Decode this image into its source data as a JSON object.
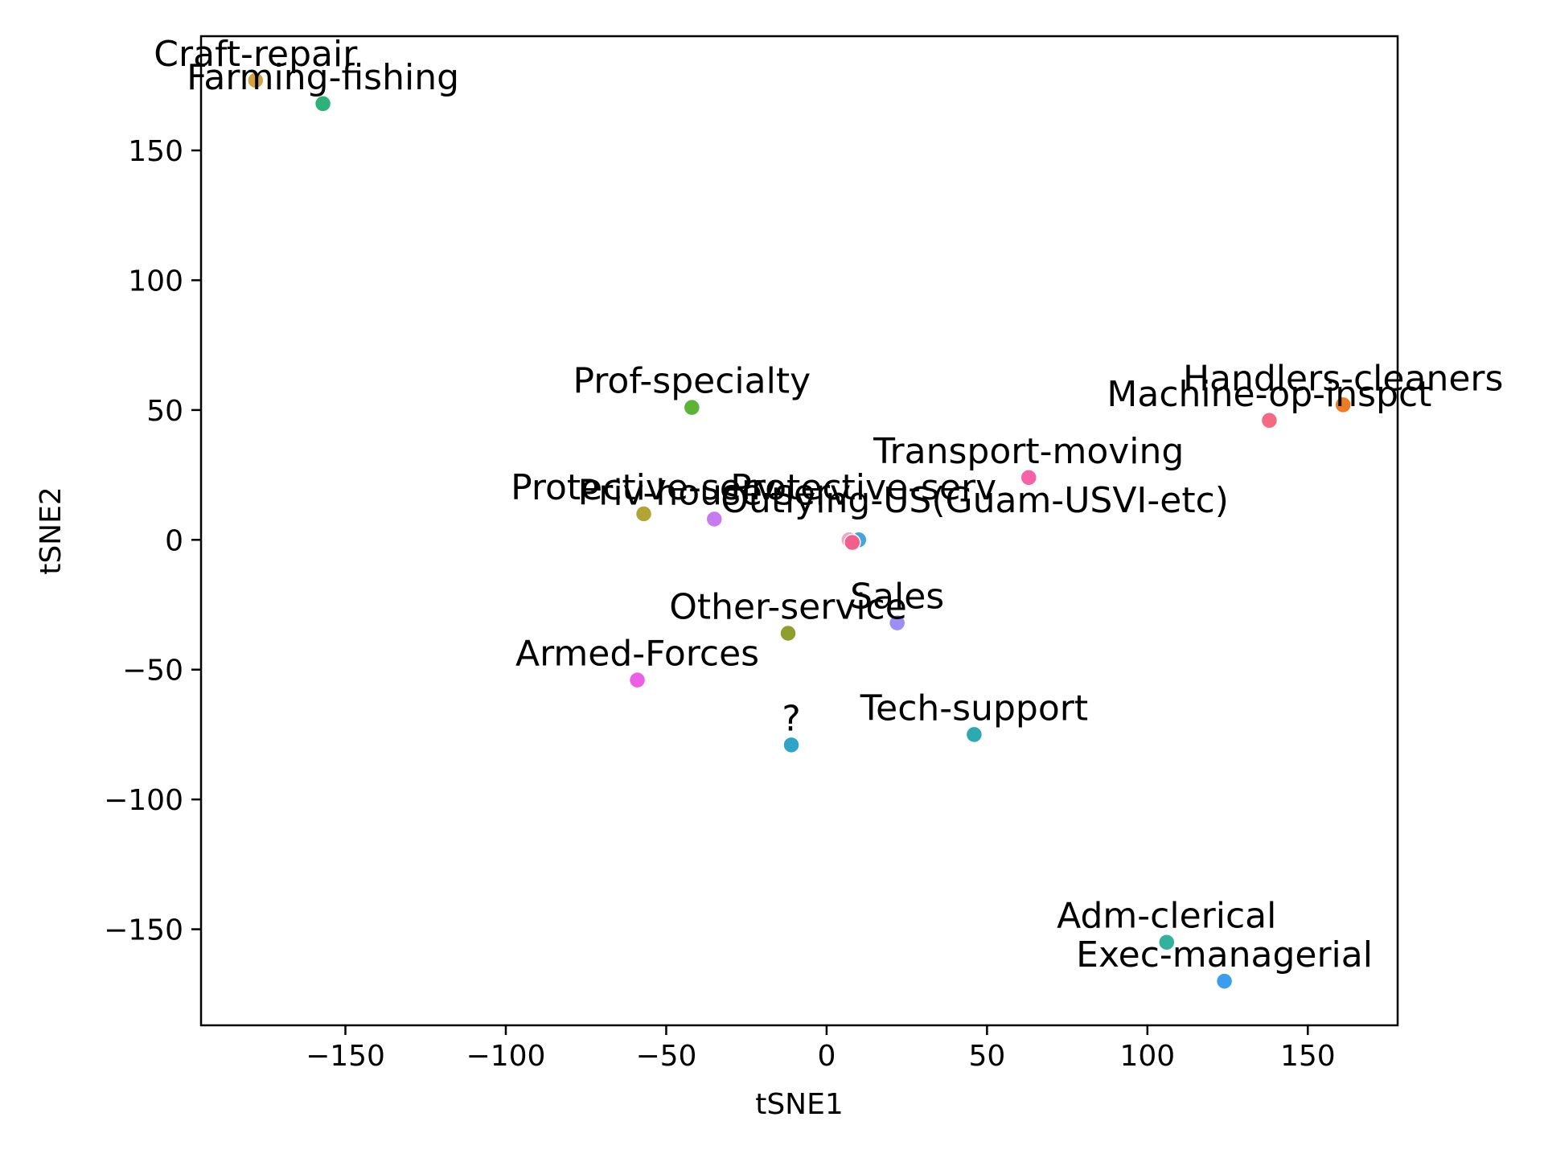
{
  "chart_data": {
    "type": "scatter",
    "title": "",
    "xlabel": "tSNE1",
    "ylabel": "tSNE2",
    "xlim": [
      -195,
      178
    ],
    "ylim": [
      -187,
      194
    ],
    "x_ticks": [
      -150,
      -100,
      -50,
      0,
      50,
      100,
      150
    ],
    "x_tick_labels": [
      "−150",
      "−100",
      "−50",
      "0",
      "50",
      "100",
      "150"
    ],
    "y_ticks": [
      -150,
      -100,
      -50,
      0,
      50,
      100,
      150
    ],
    "y_tick_labels": [
      "−150",
      "−100",
      "−50",
      "0",
      "50",
      "100",
      "150"
    ],
    "grid": false,
    "legend": "none",
    "points": [
      {
        "label": "Craft-repair",
        "x": -178,
        "y": 177,
        "color": "#d4a043"
      },
      {
        "label": "Farming-fishing",
        "x": -157,
        "y": 168,
        "color": "#2fb27a"
      },
      {
        "label": "Prof-specialty",
        "x": -42,
        "y": 51,
        "color": "#5cb336"
      },
      {
        "label": "Handlers-cleaners",
        "x": 161,
        "y": 52,
        "color": "#ef7a28"
      },
      {
        "label": "Machine-op-inspct",
        "x": 138,
        "y": 46,
        "color": "#f26b82"
      },
      {
        "label": "Transport-moving",
        "x": 63,
        "y": 24,
        "color": "#f562a5"
      },
      {
        "label": "Protective-serv",
        "x": -57,
        "y": 10,
        "color": "#b1a435"
      },
      {
        "label": "Priv-house-serv",
        "x": -35,
        "y": 8,
        "color": "#c67cf0"
      },
      {
        "label": "Other-service",
        "x": -12,
        "y": -36,
        "color": "#8f9e2e"
      },
      {
        "label": "Sales",
        "x": 22,
        "y": -32,
        "color": "#9c8ef2"
      },
      {
        "label": "Armed-Forces",
        "x": -59,
        "y": -54,
        "color": "#ec5ee3"
      },
      {
        "label": "?",
        "x": -11,
        "y": -79,
        "color": "#2fa4c8"
      },
      {
        "label": "Tech-support",
        "x": 46,
        "y": -75,
        "color": "#2baab2"
      },
      {
        "label": "Adm-clerical",
        "x": 106,
        "y": -155,
        "color": "#31b29e"
      },
      {
        "label": "Exec-managerial",
        "x": 124,
        "y": -170,
        "color": "#3b9ded"
      }
    ],
    "cluster_points": [
      {
        "x": 10,
        "y": 0,
        "color": "#45a5d8"
      },
      {
        "x": 7,
        "y": 0,
        "color": "#f7a1c1"
      },
      {
        "x": 8,
        "y": -1,
        "color": "#f25f8a"
      }
    ],
    "cluster_labels": [
      {
        "text": "Outlying-US(Guam-USVI-etc)",
        "x": -33,
        "y": 5
      },
      {
        "text": "Protective-serv",
        "x": -30,
        "y": 10
      }
    ]
  }
}
